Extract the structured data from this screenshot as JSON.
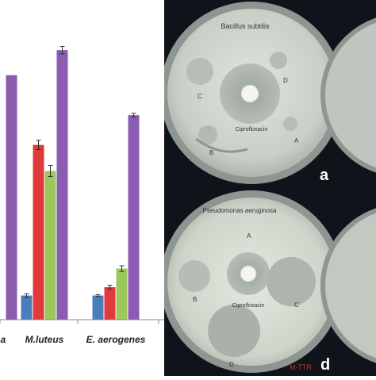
{
  "chart_data": {
    "type": "bar",
    "categories": [
      "a",
      "M.luteus",
      "E. aerogenes"
    ],
    "series": [
      {
        "color": "#4a7ebb",
        "values": [
          null,
          26,
          26
        ]
      },
      {
        "color": "#e03a3a",
        "values": [
          null,
          188,
          35
        ]
      },
      {
        "color": "#9bc75b",
        "values": [
          null,
          160,
          55
        ]
      },
      {
        "color": "#8a5db0",
        "values": [
          263,
          290,
          220
        ]
      }
    ],
    "errors": [
      [
        null,
        2,
        1
      ],
      [
        null,
        5,
        2
      ],
      [
        null,
        6,
        3
      ],
      [
        null,
        4,
        2
      ]
    ],
    "ylim": [
      0,
      320
    ],
    "grid": false
  },
  "photos": {
    "top": {
      "title": "Bacillus subtilis",
      "center_label": "Ciprofloxacin",
      "wells": [
        "C",
        "D",
        "B",
        "A"
      ],
      "panel_letter": "a"
    },
    "bottom": {
      "title": "Pseudomonas aeruginosa",
      "center_label": "Ciprofloxacin",
      "wells": [
        "A",
        "B",
        "C",
        "D"
      ],
      "panel_letter": "d",
      "stamp": "M-TTR"
    }
  }
}
